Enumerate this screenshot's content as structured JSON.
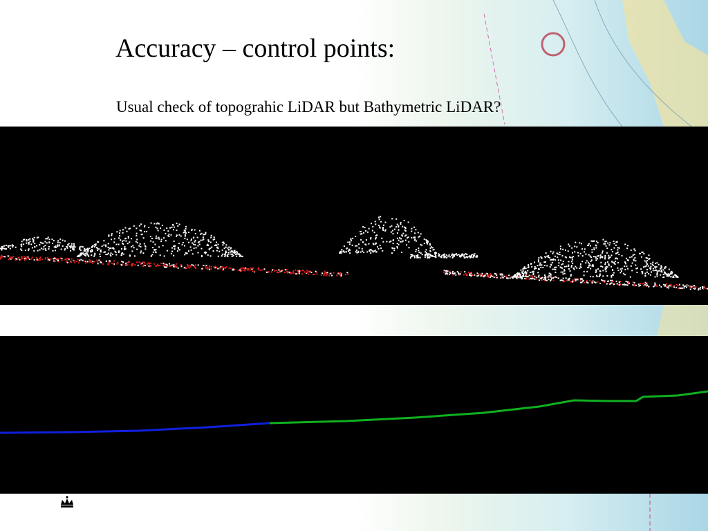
{
  "slide": {
    "title": "Accuracy – control points:",
    "subtitle": "Usual check of topograhic LiDAR but Bathymetric LiDAR?"
  }
}
